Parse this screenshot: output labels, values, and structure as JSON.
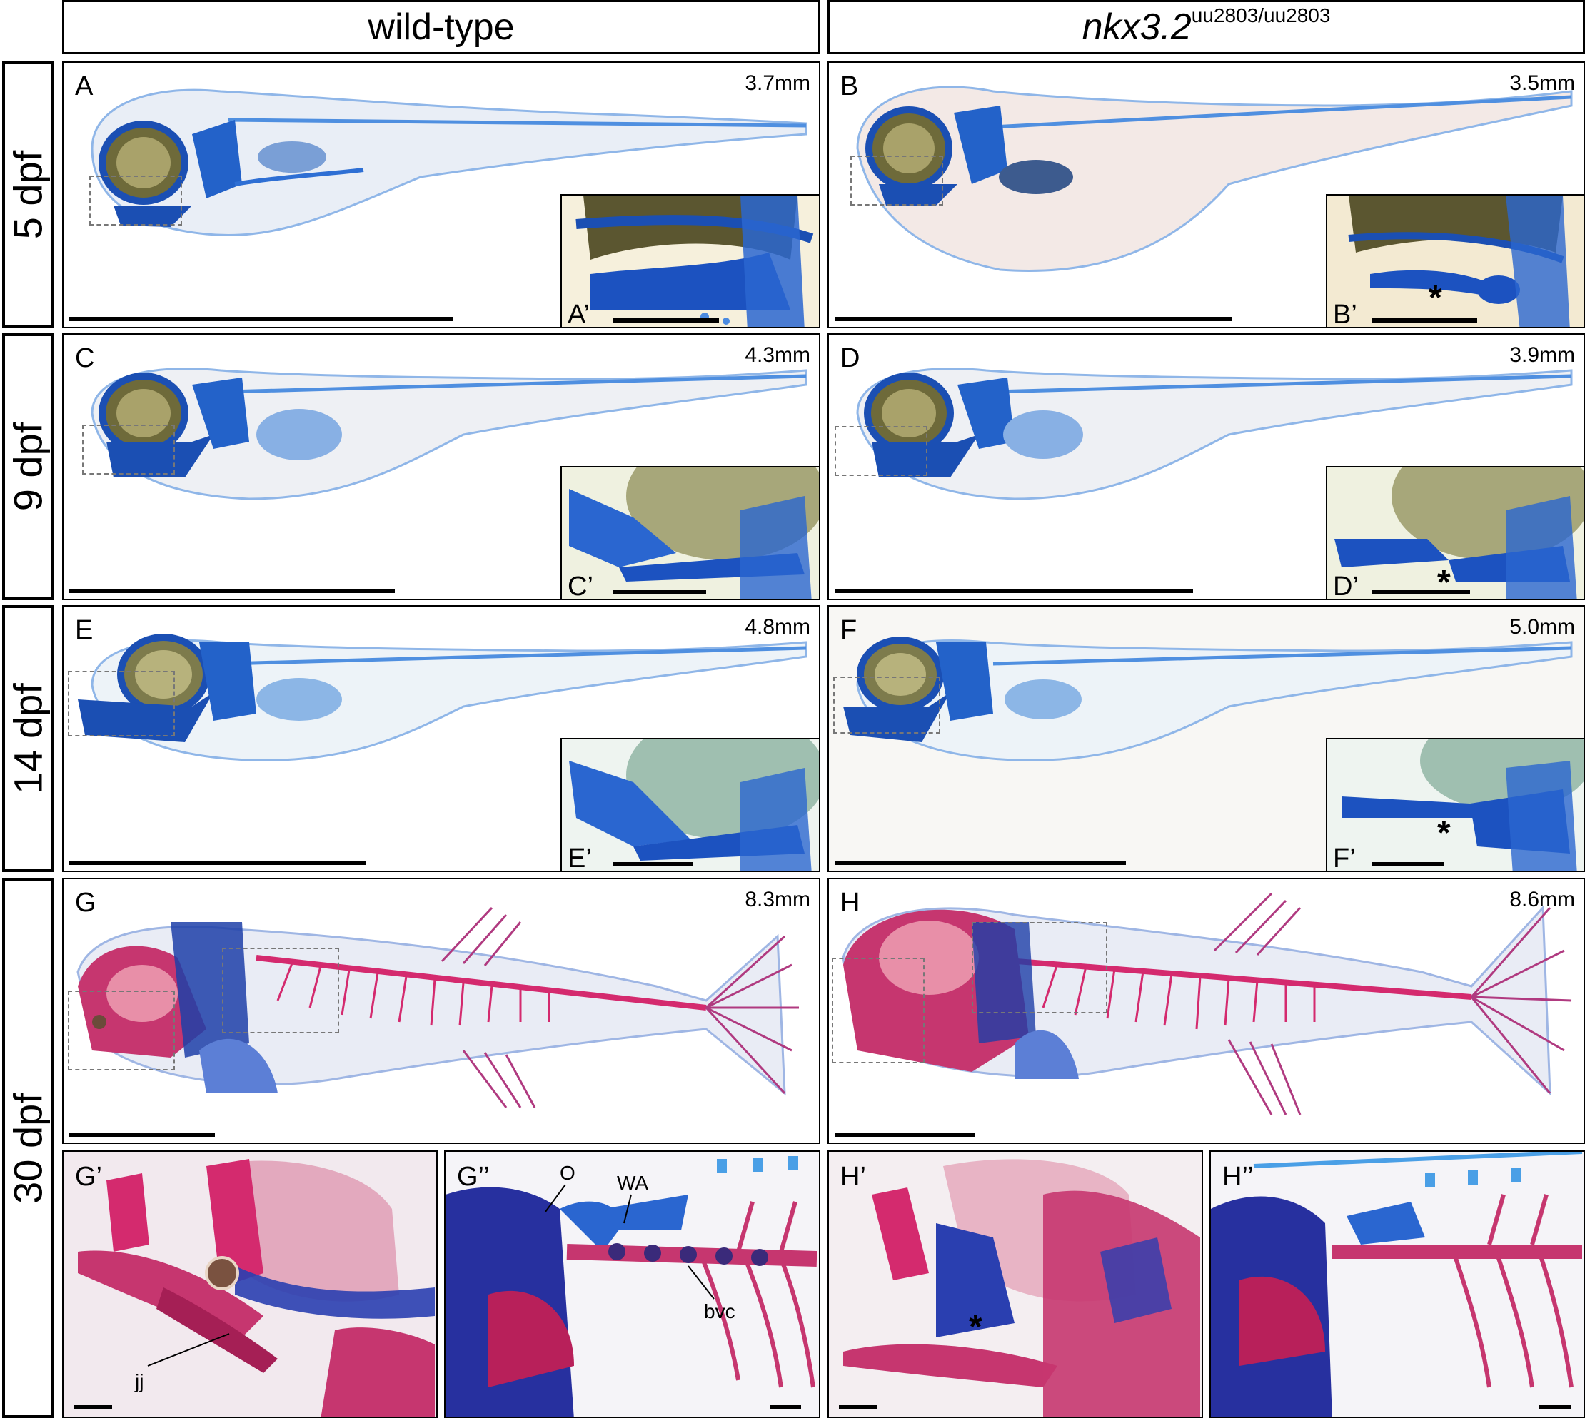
{
  "headers": {
    "wt": "wild-type",
    "mut_gene": "nkx3.2",
    "mut_allele": "uu2803/uu2803"
  },
  "rows": {
    "r1": "5 dpf",
    "r2": "9 dpf",
    "r3": "14 dpf",
    "r4": "30 dpf"
  },
  "panels": {
    "A": {
      "label": "A",
      "size": "3.7mm",
      "inset": "A’"
    },
    "B": {
      "label": "B",
      "size": "3.5mm",
      "inset": "B’"
    },
    "C": {
      "label": "C",
      "size": "4.3mm",
      "inset": "C’"
    },
    "D": {
      "label": "D",
      "size": "3.9mm",
      "inset": "D’"
    },
    "E": {
      "label": "E",
      "size": "4.8mm",
      "inset": "E’"
    },
    "F": {
      "label": "F",
      "size": "5.0mm",
      "inset": "F’"
    },
    "G": {
      "label": "G",
      "size": "8.3mm"
    },
    "H": {
      "label": "H",
      "size": "8.6mm"
    },
    "G1": {
      "label": "G’"
    },
    "G2": {
      "label": "G’’"
    },
    "H1": {
      "label": "H’"
    },
    "H2": {
      "label": "H’’"
    }
  },
  "annotations": {
    "jj": "jj",
    "O": "O",
    "WA": "WA",
    "bvc": "bvc",
    "asterisk": "*"
  },
  "colors": {
    "alcian": "#1a5fc8",
    "alizarin": "#d42a6e",
    "tissue": "#efe2bf"
  }
}
